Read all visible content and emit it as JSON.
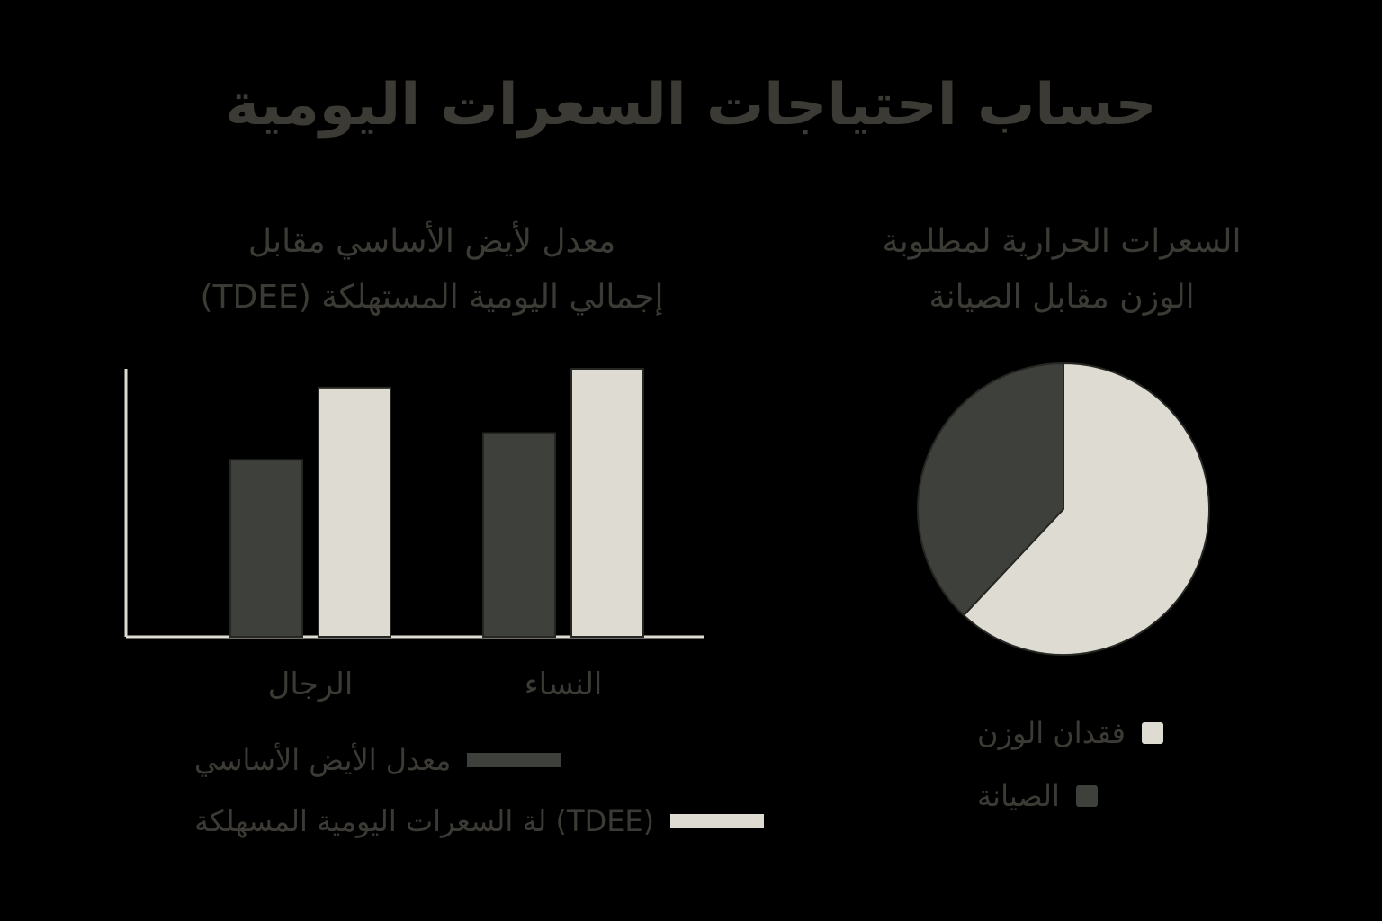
{
  "page": {
    "title": "حساب احتياجات السعرات اليومية"
  },
  "colors": {
    "background": "#000000",
    "dark": "#3e403b",
    "light": "#dedbd3",
    "axis": "#dedbd3",
    "text": "#3b3a34"
  },
  "chart_data": [
    {
      "type": "bar",
      "title_lines": [
        "معدل لأيض الأساسي مقابل",
        "إجمالي اليومية المستهلكة (TDEE)"
      ],
      "categories": [
        "الرجال",
        "النساء"
      ],
      "series": [
        {
          "name": "معدل الأيض الأساسي",
          "values": [
            66,
            76
          ],
          "color": "#3e403b"
        },
        {
          "name": "(TDEE) لة السعرات اليومية المسهلكة",
          "values": [
            93,
            100
          ],
          "color": "#dedbd3"
        }
      ],
      "ylim": [
        0,
        100
      ],
      "grid": false,
      "legend": "bottom"
    },
    {
      "type": "pie",
      "title_lines": [
        "السعرات الحرارية لمطلوبة",
        "الوزن مقابل الصيانة"
      ],
      "labels": [
        "فقدان الوزن",
        "الصيانة"
      ],
      "values": [
        62,
        38
      ],
      "colors": [
        "#dedbd3",
        "#3e403b"
      ],
      "legend": "bottom"
    }
  ]
}
